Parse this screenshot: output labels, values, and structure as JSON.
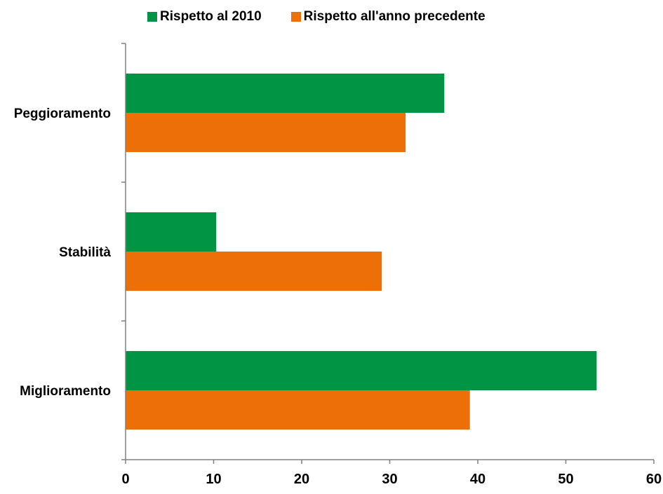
{
  "chart_data": {
    "type": "bar",
    "orientation": "horizontal",
    "categories": [
      "Peggioramento",
      "Stabilità",
      "Miglioramento"
    ],
    "series": [
      {
        "name": "Rispetto al 2010",
        "color": "#009444",
        "values": [
          36.2,
          10.3,
          53.5
        ]
      },
      {
        "name": "Rispetto all'anno precedente",
        "color": "#ED6F07",
        "values": [
          31.8,
          29.1,
          39.1
        ]
      }
    ],
    "xlim": [
      0,
      60
    ],
    "xticks": [
      "0",
      "10",
      "20",
      "30",
      "40",
      "50",
      "60"
    ],
    "grid": false,
    "legend": "top"
  }
}
